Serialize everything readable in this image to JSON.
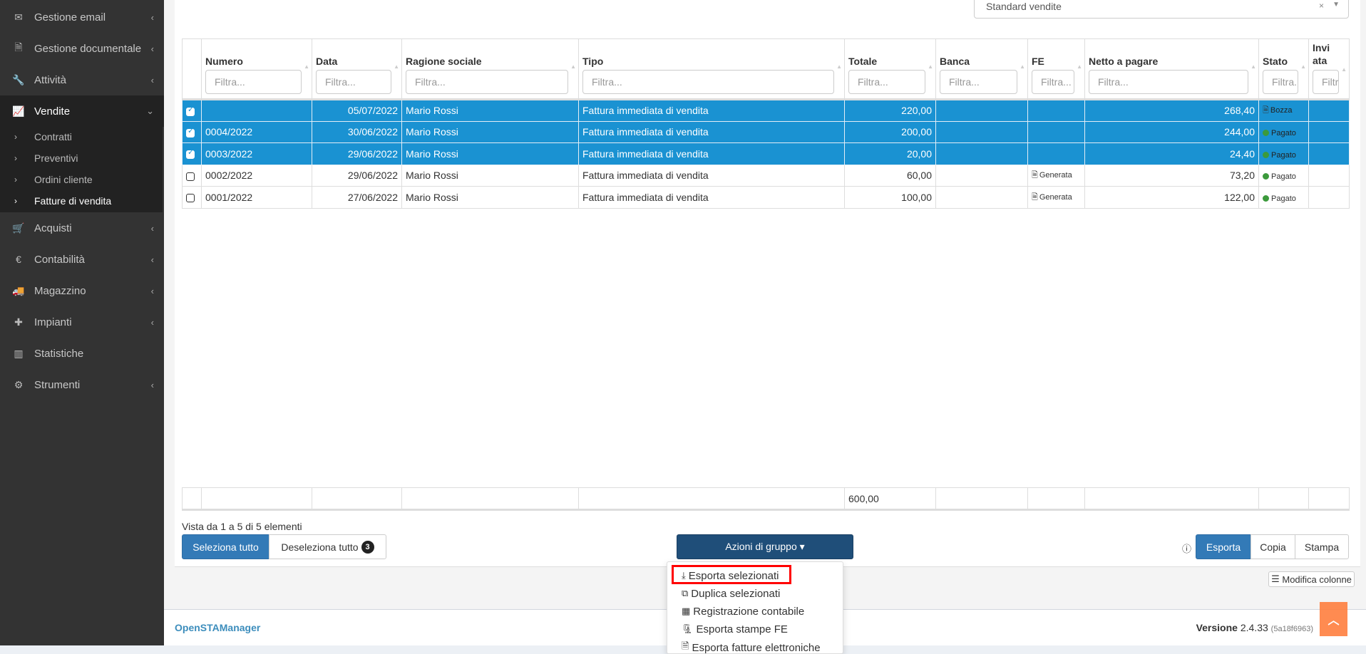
{
  "sidebar": {
    "items": [
      {
        "label": "Gestione email",
        "icon": "envelope-icon",
        "glyph": "✉"
      },
      {
        "label": "Gestione documentale",
        "icon": "file-icon",
        "glyph": "🗎"
      },
      {
        "label": "Attività",
        "icon": "wrench-icon",
        "glyph": "🔧"
      },
      {
        "label": "Vendite",
        "icon": "line-chart-icon",
        "glyph": "📈"
      },
      {
        "label": "Acquisti",
        "icon": "cart-icon",
        "glyph": "🛒"
      },
      {
        "label": "Contabilità",
        "icon": "euro-icon",
        "glyph": "€"
      },
      {
        "label": "Magazzino",
        "icon": "truck-icon",
        "glyph": "🚚"
      },
      {
        "label": "Impianti",
        "icon": "puzzle-icon",
        "glyph": "✚"
      },
      {
        "label": "Statistiche",
        "icon": "bar-chart-icon",
        "glyph": "▥"
      },
      {
        "label": "Strumenti",
        "icon": "gear-icon",
        "glyph": "⚙"
      }
    ],
    "submenu": [
      "Contratti",
      "Preventivi",
      "Ordini cliente",
      "Fatture di vendita"
    ]
  },
  "preset": {
    "value": "Standard vendite",
    "clear": "×",
    "arrow": "▼"
  },
  "table": {
    "columns": [
      "Numero",
      "Data",
      "Ragione sociale",
      "Tipo",
      "Totale",
      "Banca",
      "FE",
      "Netto a pagare",
      "Stato",
      "Invi ata"
    ],
    "filter_placeholder": "Filtra...",
    "rows": [
      {
        "selected": true,
        "numero": "",
        "data": "05/07/2022",
        "ragione": "Mario Rossi",
        "tipo": "Fattura immediata di vendita",
        "totale": "220,00",
        "banca": "",
        "fe": "",
        "netto": "268,40",
        "stato": "Bozza"
      },
      {
        "selected": true,
        "numero": "0004/2022",
        "data": "30/06/2022",
        "ragione": "Mario Rossi",
        "tipo": "Fattura immediata di vendita",
        "totale": "200,00",
        "banca": "",
        "fe": "",
        "netto": "244,00",
        "stato": "Pagato"
      },
      {
        "selected": true,
        "numero": "0003/2022",
        "data": "29/06/2022",
        "ragione": "Mario Rossi",
        "tipo": "Fattura immediata di vendita",
        "totale": "20,00",
        "banca": "",
        "fe": "",
        "netto": "24,40",
        "stato": "Pagato"
      },
      {
        "selected": false,
        "numero": "0002/2022",
        "data": "29/06/2022",
        "ragione": "Mario Rossi",
        "tipo": "Fattura immediata di vendita",
        "totale": "60,00",
        "banca": "",
        "fe": "Generata",
        "netto": "73,20",
        "stato": "Pagato"
      },
      {
        "selected": false,
        "numero": "0001/2022",
        "data": "27/06/2022",
        "ragione": "Mario Rossi",
        "tipo": "Fattura immediata di vendita",
        "totale": "100,00",
        "banca": "",
        "fe": "Generata",
        "netto": "122,00",
        "stato": "Pagato"
      }
    ],
    "footer_total": "600,00"
  },
  "info": "Vista da 1 a 5 di 5 elementi",
  "buttons": {
    "select_all": "Seleziona tutto",
    "deselect_all": "Deseleziona tutto",
    "selected_count": "3",
    "group_actions": "Azioni di gruppo ▾",
    "export": "Esporta",
    "copy": "Copia",
    "print": "Stampa",
    "edit_columns": "Modifica colonne"
  },
  "group_menu": [
    {
      "label": "Esporta selezionati",
      "glyph": "⤓",
      "icon": "download-icon"
    },
    {
      "label": "Duplica selezionati",
      "glyph": "⧉",
      "icon": "copy-icon"
    },
    {
      "label": "Registrazione contabile",
      "glyph": "▦",
      "icon": "calculator-icon"
    },
    {
      "label": "Esporta stampe FE",
      "glyph": "🗜",
      "icon": "file-archive-icon"
    },
    {
      "label": "Esporta fatture elettroniche",
      "glyph": "🗎",
      "icon": "file-icon"
    }
  ],
  "footer": {
    "brand": "OpenSTAManager",
    "version_label": "Versione",
    "version": "2.4.33",
    "commit": "(5a18f6963)"
  },
  "colors": {
    "selected_row": "#1a92d2",
    "primary": "#337ab7",
    "group_button": "#1f4e79",
    "highlight": "#ff0000",
    "to_top": "#ff7f3f"
  }
}
